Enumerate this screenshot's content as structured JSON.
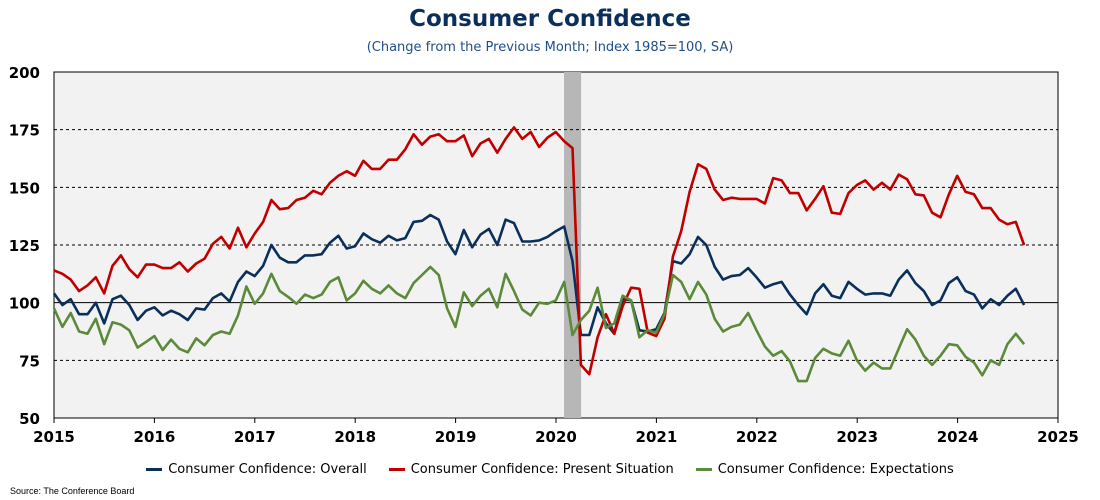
{
  "title": "Consumer Confidence",
  "subtitle": "(Change from the Previous Month; Index 1985=100, SA)",
  "source": "Source: The Conference Board",
  "colors": {
    "overall": "#0b2f5b",
    "present": "#c00000",
    "expectations": "#5a8a3a",
    "recession": "#b7b7b7",
    "plot_bg": "#f2f2f2"
  },
  "chart_data": {
    "type": "line",
    "title": "Consumer Confidence",
    "subtitle": "(Change from the Previous Month; Index 1985=100, SA)",
    "xlabel": "",
    "ylabel": "",
    "xlim": [
      2015,
      2025
    ],
    "ylim": [
      50,
      200
    ],
    "yticks": [
      "50",
      "75",
      "100",
      "125",
      "150",
      "175",
      "200"
    ],
    "xticks": [
      "2015",
      "2016",
      "2017",
      "2018",
      "2019",
      "2020",
      "2021",
      "2022",
      "2023",
      "2024",
      "2025"
    ],
    "grid": "dashed horizontal",
    "legend": "bottom",
    "recession": [
      2020.08,
      2020.25
    ],
    "series": [
      {
        "name": "Consumer Confidence: Overall",
        "color_key": "overall",
        "start": 2015.0,
        "step": 0.0833,
        "values": [
          104,
          99,
          101.5,
          95,
          95,
          100,
          91,
          101.5,
          103,
          99,
          92.5,
          96.5,
          98,
          94.5,
          96.5,
          95,
          92.5,
          97.5,
          97,
          102,
          104,
          100.5,
          109,
          113.5,
          111.5,
          116,
          125,
          119.5,
          117.5,
          117.5,
          120.5,
          120.5,
          121,
          126,
          129,
          123.5,
          124.5,
          130,
          127.5,
          126,
          129,
          127,
          128,
          135,
          135.5,
          138,
          136,
          126.5,
          121,
          131.5,
          124,
          129.5,
          132,
          125,
          136,
          134.5,
          126.5,
          126.5,
          127,
          128.5,
          131,
          133,
          118,
          86,
          86,
          98,
          91,
          86.5,
          101.5,
          101,
          88,
          87.5,
          88.5,
          95.5,
          118,
          117,
          121,
          128.5,
          125,
          115.5,
          110,
          111.5,
          112,
          115,
          111,
          106.5,
          108,
          109,
          103.5,
          99,
          95,
          104,
          108,
          103,
          102,
          109,
          106,
          103.5,
          104,
          104,
          103,
          110,
          114,
          108.5,
          105,
          99,
          101,
          108.5,
          111,
          105,
          103.5,
          97.5,
          101.5,
          99,
          103,
          106,
          99
        ]
      },
      {
        "name": "Consumer Confidence: Present Situation",
        "color_key": "present",
        "start": 2015.0,
        "step": 0.0833,
        "values": [
          114,
          112.5,
          110,
          105,
          107.5,
          111,
          104,
          116,
          120.5,
          114.5,
          111,
          116.5,
          116.5,
          115,
          115,
          117.5,
          113.5,
          117,
          119,
          125.5,
          128.5,
          123.5,
          132.5,
          124,
          130,
          135,
          144.5,
          140.5,
          141,
          144.5,
          145.5,
          148.5,
          147,
          152,
          155,
          157,
          155,
          161.5,
          158,
          158,
          162,
          162,
          166.5,
          173,
          168.5,
          172,
          173,
          170,
          170,
          172.5,
          163.5,
          169,
          171,
          165,
          171,
          176,
          171,
          174,
          167.5,
          171.5,
          174,
          170,
          167,
          73,
          69,
          85,
          95,
          86.5,
          98.5,
          106.5,
          106,
          87,
          85.5,
          93,
          120,
          131,
          148,
          160,
          158,
          149,
          144.5,
          145.5,
          145,
          145,
          145,
          143,
          154,
          153,
          147.5,
          147.5,
          140,
          145,
          150.5,
          139,
          138.5,
          147.5,
          151,
          153,
          149,
          152,
          149,
          155.5,
          153.5,
          147,
          146.5,
          139,
          137,
          147,
          155,
          148,
          147,
          141,
          141,
          136,
          134,
          135,
          125
        ]
      },
      {
        "name": "Consumer Confidence: Expectations",
        "color_key": "expectations",
        "start": 2015.0,
        "step": 0.0833,
        "values": [
          97.5,
          89.5,
          95.5,
          87.5,
          86.5,
          93,
          82,
          91.5,
          90.5,
          88,
          80.5,
          83,
          85.5,
          79.5,
          84,
          80,
          78.5,
          84.5,
          81.5,
          86,
          87.5,
          86.5,
          94.5,
          107,
          99.5,
          104,
          112.5,
          105,
          102.5,
          99.5,
          103.5,
          102,
          103.5,
          109,
          111,
          101,
          104,
          109.5,
          106,
          104,
          107.5,
          104,
          102,
          108.5,
          112,
          115.5,
          112,
          97.5,
          89.5,
          104.5,
          98.5,
          103,
          106,
          98,
          112.5,
          105,
          97,
          94.5,
          100,
          99.5,
          101,
          109,
          86,
          92.5,
          96.5,
          106.5,
          89,
          91,
          103,
          101,
          85,
          88,
          87,
          95,
          112,
          109,
          101.5,
          109,
          103.5,
          93,
          87.5,
          89.5,
          90.5,
          95.5,
          88,
          81,
          77,
          79,
          74.5,
          66,
          66,
          76,
          80,
          78,
          77,
          83.5,
          75,
          70.5,
          74,
          71.5,
          71.5,
          80,
          88.5,
          84,
          77,
          73,
          77,
          82,
          81.5,
          76.5,
          74,
          68.5,
          75,
          73,
          82,
          86.5,
          82
        ]
      }
    ]
  }
}
